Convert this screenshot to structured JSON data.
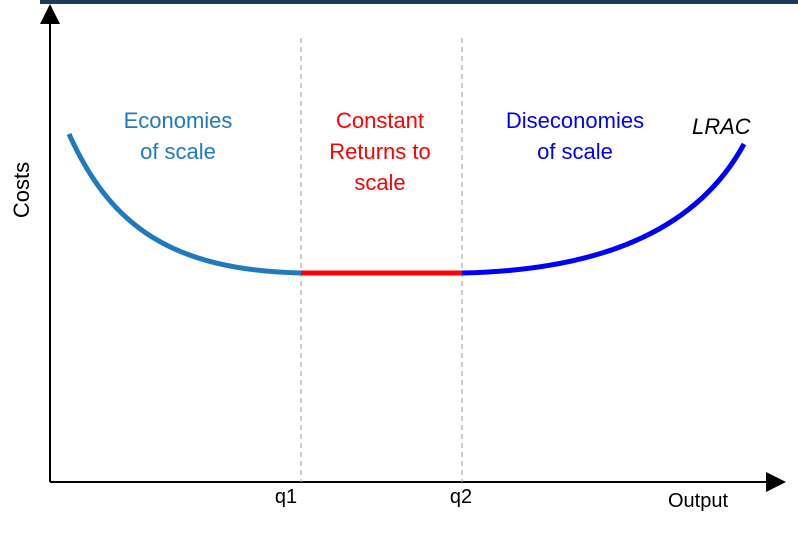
{
  "axes": {
    "y_label": "Costs",
    "x_label": "Output",
    "ticks": [
      "q1",
      "q2"
    ]
  },
  "regions": {
    "economies": "Economies\nof scale",
    "constant": "Constant\nReturns to\nscale",
    "diseconomies": "Diseconomies\nof scale"
  },
  "curve_label": "LRAC",
  "colors": {
    "economies": "#1f7ac0",
    "constant": "#ff0000",
    "diseconomies": "#0000ff",
    "header_bar": "#1f3b5c"
  }
}
